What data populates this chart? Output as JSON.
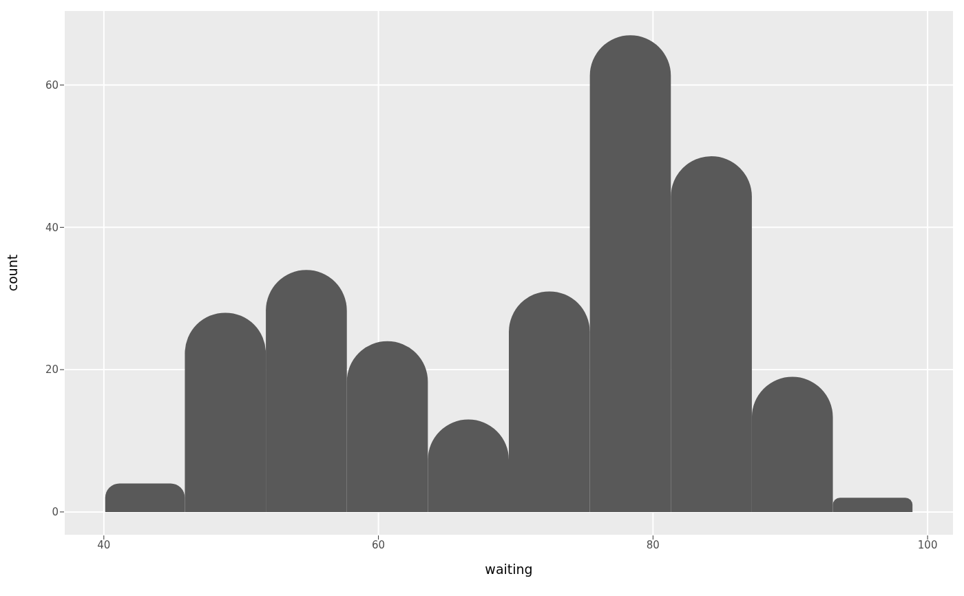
{
  "chart_data": {
    "type": "histogram",
    "xlabel": "waiting",
    "ylabel": "count",
    "bins": [
      40.1,
      45.9,
      51.8,
      57.7,
      63.6,
      69.5,
      75.4,
      81.3,
      87.2,
      93.1,
      98.9
    ],
    "values": [
      4,
      28,
      34,
      24,
      13,
      31,
      67,
      50,
      19,
      2
    ],
    "color": "#595959",
    "xlim": [
      37.1,
      101.9
    ],
    "xticks": [
      40,
      60,
      80,
      100
    ],
    "ylim": [
      -3.3,
      70.5
    ],
    "yticks": [
      0,
      20,
      40,
      60
    ],
    "grid": true
  }
}
